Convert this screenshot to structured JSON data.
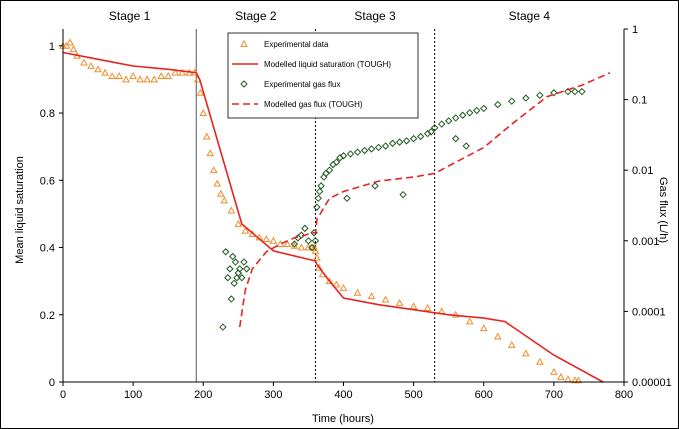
{
  "chart_data": {
    "type": "scatter",
    "xlabel": "Time (hours)",
    "ylabel": "Mean liquid saturation",
    "y2label": "Gas flux (L/h)",
    "xlim": [
      0,
      800
    ],
    "ylim": [
      0,
      1.05
    ],
    "y2lim": [
      1e-05,
      1
    ],
    "y2scale": "log",
    "x_ticks": [
      0,
      100,
      200,
      300,
      400,
      500,
      600,
      700,
      800
    ],
    "x_tick_labels": [
      "0",
      "100",
      "200",
      "300",
      "400",
      "500",
      "600",
      "700",
      "800"
    ],
    "y_ticks": [
      0,
      0.2,
      0.4,
      0.6,
      0.8,
      1
    ],
    "y_tick_labels": [
      "0",
      "0.2",
      "0.4",
      "0.6",
      "0.8",
      "1"
    ],
    "y2_ticks": [
      1e-05,
      0.0001,
      0.001,
      0.01,
      0.1,
      1
    ],
    "y2_tick_labels": [
      "0.00001",
      "0.0001",
      "0.001",
      "0.01",
      "0.1",
      "1"
    ],
    "grid": false,
    "legend_position": "top-center",
    "stages": [
      {
        "label": "Stage 1",
        "x_start": 0,
        "x_end": 190
      },
      {
        "label": "Stage 2",
        "x_start": 190,
        "x_end": 360
      },
      {
        "label": "Stage 3",
        "x_start": 360,
        "x_end": 530
      },
      {
        "label": "Stage 4",
        "x_start": 530,
        "x_end": 800
      }
    ],
    "stage_dividers": [
      {
        "x": 190,
        "style": "solid"
      },
      {
        "x": 360,
        "style": "dotted"
      },
      {
        "x": 530,
        "style": "dotted"
      }
    ],
    "series": [
      {
        "name": "Experimental data",
        "axis": "left",
        "marker": "triangle",
        "color": "#f28c28",
        "x": [
          0,
          5,
          10,
          15,
          20,
          30,
          40,
          50,
          60,
          70,
          80,
          90,
          100,
          110,
          120,
          130,
          140,
          150,
          160,
          170,
          180,
          188,
          192,
          196,
          200,
          205,
          210,
          215,
          220,
          225,
          230,
          240,
          250,
          260,
          270,
          280,
          290,
          300,
          310,
          320,
          330,
          340,
          350,
          355,
          358,
          360,
          362,
          365,
          370,
          380,
          390,
          400,
          420,
          440,
          460,
          480,
          500,
          520,
          540,
          560,
          580,
          600,
          620,
          640,
          660,
          680,
          700,
          710,
          720,
          730,
          735
        ],
        "y": [
          1.0,
          1.0,
          1.01,
          0.99,
          0.97,
          0.95,
          0.94,
          0.93,
          0.92,
          0.91,
          0.91,
          0.9,
          0.91,
          0.9,
          0.9,
          0.9,
          0.91,
          0.91,
          0.92,
          0.92,
          0.92,
          0.92,
          0.9,
          0.86,
          0.8,
          0.73,
          0.68,
          0.63,
          0.59,
          0.56,
          0.54,
          0.51,
          0.47,
          0.45,
          0.44,
          0.43,
          0.425,
          0.42,
          0.41,
          0.41,
          0.405,
          0.4,
          0.4,
          0.4,
          0.4,
          0.39,
          0.37,
          0.34,
          0.32,
          0.3,
          0.29,
          0.28,
          0.265,
          0.255,
          0.245,
          0.235,
          0.225,
          0.22,
          0.21,
          0.2,
          0.18,
          0.16,
          0.135,
          0.11,
          0.085,
          0.06,
          0.03,
          0.015,
          0.008,
          0.005,
          0.005
        ]
      },
      {
        "name": "Modelled liquid saturation (TOUGH)",
        "axis": "left",
        "line": "solid",
        "color": "#e8231f",
        "x": [
          0,
          50,
          100,
          150,
          190,
          195,
          255,
          300,
          360,
          362,
          380,
          400,
          450,
          500,
          550,
          600,
          630,
          700,
          770
        ],
        "y": [
          0.98,
          0.96,
          0.94,
          0.93,
          0.92,
          0.9,
          0.47,
          0.39,
          0.36,
          0.35,
          0.3,
          0.25,
          0.23,
          0.215,
          0.2,
          0.19,
          0.18,
          0.08,
          0.0
        ]
      },
      {
        "name": "Experimental gas flux",
        "axis": "right",
        "marker": "diamond",
        "color": "#1f5a1f",
        "x": [
          228,
          232,
          235,
          238,
          240,
          242,
          244,
          246,
          248,
          250,
          252,
          255,
          258,
          262,
          330,
          335,
          340,
          345,
          350,
          355,
          358,
          360,
          362,
          364,
          366,
          368,
          372,
          375,
          380,
          385,
          390,
          395,
          400,
          410,
          420,
          430,
          440,
          450,
          460,
          470,
          480,
          490,
          500,
          510,
          520,
          525,
          530,
          540,
          550,
          560,
          570,
          580,
          590,
          600,
          620,
          640,
          660,
          680,
          700,
          720,
          730,
          740,
          405,
          445,
          485,
          560,
          575
        ],
        "y": [
          6e-05,
          0.0007,
          0.0003,
          0.0004,
          0.00015,
          0.0006,
          0.00025,
          0.0005,
          0.0003,
          0.00035,
          0.0004,
          0.0003,
          0.0005,
          0.0004,
          0.0009,
          0.0011,
          0.0012,
          0.0015,
          0.001,
          0.0008,
          0.0013,
          0.001,
          0.003,
          0.004,
          0.005,
          0.006,
          0.008,
          0.009,
          0.01,
          0.012,
          0.013,
          0.015,
          0.016,
          0.017,
          0.018,
          0.019,
          0.02,
          0.021,
          0.022,
          0.024,
          0.025,
          0.026,
          0.028,
          0.03,
          0.033,
          0.035,
          0.04,
          0.045,
          0.05,
          0.055,
          0.06,
          0.065,
          0.07,
          0.075,
          0.085,
          0.095,
          0.105,
          0.115,
          0.125,
          0.13,
          0.13,
          0.13,
          0.004,
          0.006,
          0.0045,
          0.028,
          0.022
        ]
      },
      {
        "name": "Modelled gas flux (TOUGH)",
        "axis": "right",
        "line": "dashed",
        "color": "#e8231f",
        "x": [
          252,
          260,
          270,
          290,
          310,
          330,
          345,
          355,
          360,
          362,
          380,
          400,
          450,
          500,
          530,
          560,
          600,
          640,
          690,
          740,
          780
        ],
        "y": [
          6e-05,
          0.0002,
          0.0004,
          0.0007,
          0.0009,
          0.0011,
          0.0012,
          0.0013,
          0.0013,
          0.002,
          0.004,
          0.005,
          0.007,
          0.008,
          0.009,
          0.013,
          0.021,
          0.045,
          0.11,
          0.16,
          0.24
        ]
      }
    ]
  }
}
